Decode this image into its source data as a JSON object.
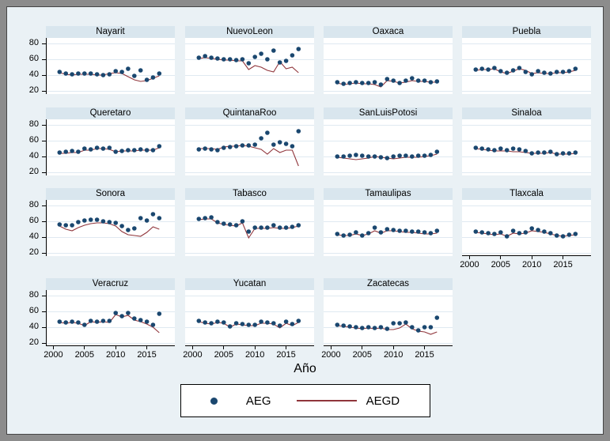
{
  "chart_data": {
    "type": "scatter",
    "title": "",
    "xlabel": "Año",
    "x_years": [
      2001,
      2002,
      2003,
      2004,
      2005,
      2006,
      2007,
      2008,
      2009,
      2010,
      2011,
      2012,
      2013,
      2014,
      2015,
      2016,
      2017
    ],
    "x_ticks": [
      2000,
      2005,
      2010,
      2015
    ],
    "y_ticks": [
      20,
      40,
      60,
      80
    ],
    "xlim": [
      1998.8,
      2019.5
    ],
    "ylim": [
      16,
      87
    ],
    "grid": true,
    "legend_position": "bottom-center",
    "legend": [
      {
        "name": "AEG",
        "marker": "dot"
      },
      {
        "name": "AEGD",
        "marker": "line"
      }
    ],
    "colors": {
      "aeg_dot": "#1a476f",
      "aegd_line": "#90353b",
      "background": "#eaf1f5",
      "title_strip": "#d9e6ee",
      "plot_background": "#ffffff",
      "gridline": "#dfe9f1",
      "axis": "#000000",
      "outer_frame": "#8c8c8c"
    },
    "series_by_panel": [
      {
        "title": "Nayarit",
        "AEG": [
          44,
          42,
          41,
          42,
          42,
          42,
          41,
          40,
          41,
          45,
          44,
          48,
          39,
          46,
          34,
          37,
          42
        ],
        "AEGD": [
          43,
          41,
          40,
          41,
          41,
          41,
          40,
          40,
          42,
          43,
          42,
          38,
          34,
          32,
          33,
          36,
          39
        ]
      },
      {
        "title": "NuevoLeon",
        "AEG": [
          62,
          64,
          62,
          61,
          60,
          60,
          59,
          60,
          55,
          63,
          67,
          60,
          71,
          56,
          58,
          65,
          73
        ],
        "AEGD": [
          61,
          62,
          61,
          60,
          59,
          59,
          58,
          58,
          47,
          52,
          50,
          46,
          44,
          57,
          48,
          50,
          43
        ]
      },
      {
        "title": "Oaxaca",
        "AEG": [
          31,
          29,
          30,
          31,
          30,
          30,
          31,
          28,
          35,
          33,
          30,
          33,
          36,
          33,
          33,
          31,
          32
        ],
        "AEGD": [
          30,
          28,
          29,
          30,
          29,
          29,
          28,
          25,
          33,
          32,
          30,
          31,
          33,
          32,
          32,
          31,
          31
        ]
      },
      {
        "title": "Puebla",
        "AEG": [
          47,
          48,
          47,
          49,
          45,
          43,
          46,
          49,
          44,
          41,
          45,
          43,
          42,
          44,
          44,
          45,
          48
        ],
        "AEGD": [
          46,
          47,
          47,
          48,
          44,
          42,
          45,
          48,
          46,
          42,
          43,
          42,
          42,
          43,
          43,
          44,
          46
        ]
      },
      {
        "title": "Queretaro",
        "AEG": [
          45,
          46,
          47,
          46,
          50,
          49,
          51,
          50,
          51,
          46,
          47,
          48,
          48,
          49,
          48,
          48,
          53
        ],
        "AEGD": [
          44,
          44,
          45,
          45,
          48,
          48,
          50,
          50,
          49,
          46,
          47,
          47,
          47,
          48,
          48,
          48,
          51
        ]
      },
      {
        "title": "QuintanaRoo",
        "AEG": [
          49,
          50,
          49,
          48,
          51,
          52,
          53,
          54,
          54,
          55,
          63,
          70,
          55,
          58,
          56,
          53,
          72
        ],
        "AEGD": [
          50,
          50,
          50,
          49,
          52,
          53,
          53,
          54,
          53,
          51,
          49,
          43,
          50,
          45,
          48,
          48,
          28
        ]
      },
      {
        "title": "SanLuisPotosi",
        "AEG": [
          40,
          40,
          41,
          42,
          41,
          40,
          40,
          39,
          38,
          40,
          41,
          41,
          40,
          41,
          41,
          42,
          46
        ],
        "AEGD": [
          39,
          38,
          37,
          36,
          37,
          38,
          40,
          39,
          38,
          37,
          38,
          39,
          39,
          39,
          40,
          41,
          43
        ]
      },
      {
        "title": "Sinaloa",
        "AEG": [
          51,
          50,
          49,
          48,
          50,
          48,
          50,
          49,
          47,
          44,
          45,
          45,
          46,
          43,
          44,
          44,
          45
        ],
        "AEGD": [
          50,
          49,
          48,
          47,
          47,
          47,
          46,
          46,
          45,
          44,
          44,
          44,
          45,
          43,
          43,
          43,
          44
        ]
      },
      {
        "title": "Sonora",
        "AEG": [
          56,
          55,
          55,
          59,
          61,
          62,
          62,
          60,
          59,
          58,
          54,
          49,
          51,
          64,
          61,
          69,
          64
        ],
        "AEGD": [
          54,
          50,
          48,
          52,
          55,
          57,
          58,
          58,
          57,
          54,
          47,
          43,
          42,
          41,
          46,
          53,
          50
        ]
      },
      {
        "title": "Tabasco",
        "AEG": [
          63,
          64,
          65,
          59,
          57,
          56,
          55,
          60,
          47,
          52,
          52,
          52,
          55,
          52,
          52,
          53,
          55
        ],
        "AEGD": [
          62,
          63,
          63,
          58,
          56,
          55,
          54,
          58,
          39,
          51,
          51,
          51,
          52,
          51,
          51,
          52,
          54
        ]
      },
      {
        "title": "Tamaulipas",
        "AEG": [
          44,
          42,
          43,
          46,
          42,
          45,
          52,
          46,
          50,
          49,
          48,
          48,
          47,
          47,
          46,
          45,
          48
        ],
        "AEGD": [
          43,
          42,
          42,
          44,
          42,
          44,
          48,
          45,
          48,
          48,
          47,
          46,
          46,
          45,
          44,
          44,
          45
        ]
      },
      {
        "title": "Tlaxcala",
        "AEG": [
          47,
          46,
          45,
          44,
          46,
          41,
          48,
          45,
          46,
          51,
          49,
          47,
          45,
          42,
          41,
          43,
          44
        ],
        "AEGD": [
          46,
          45,
          44,
          43,
          44,
          41,
          45,
          44,
          45,
          48,
          47,
          46,
          44,
          42,
          41,
          42,
          43
        ]
      },
      {
        "title": "Veracruz",
        "AEG": [
          47,
          46,
          47,
          46,
          43,
          48,
          47,
          48,
          48,
          58,
          54,
          58,
          51,
          49,
          47,
          43,
          57
        ],
        "AEGD": [
          46,
          45,
          46,
          45,
          42,
          47,
          46,
          47,
          46,
          56,
          53,
          55,
          49,
          47,
          44,
          40,
          33
        ]
      },
      {
        "title": "Yucatan",
        "AEG": [
          48,
          46,
          45,
          47,
          46,
          41,
          45,
          44,
          43,
          43,
          47,
          46,
          45,
          42,
          47,
          44,
          48
        ],
        "AEGD": [
          47,
          45,
          44,
          46,
          45,
          40,
          44,
          43,
          42,
          42,
          45,
          45,
          44,
          39,
          45,
          42,
          46
        ]
      },
      {
        "title": "Zacatecas",
        "AEG": [
          43,
          42,
          41,
          40,
          39,
          40,
          39,
          40,
          38,
          45,
          45,
          46,
          40,
          36,
          40,
          40,
          52
        ],
        "AEGD": [
          42,
          41,
          40,
          39,
          38,
          39,
          38,
          39,
          37,
          37,
          39,
          44,
          38,
          35,
          34,
          31,
          34
        ]
      }
    ]
  }
}
